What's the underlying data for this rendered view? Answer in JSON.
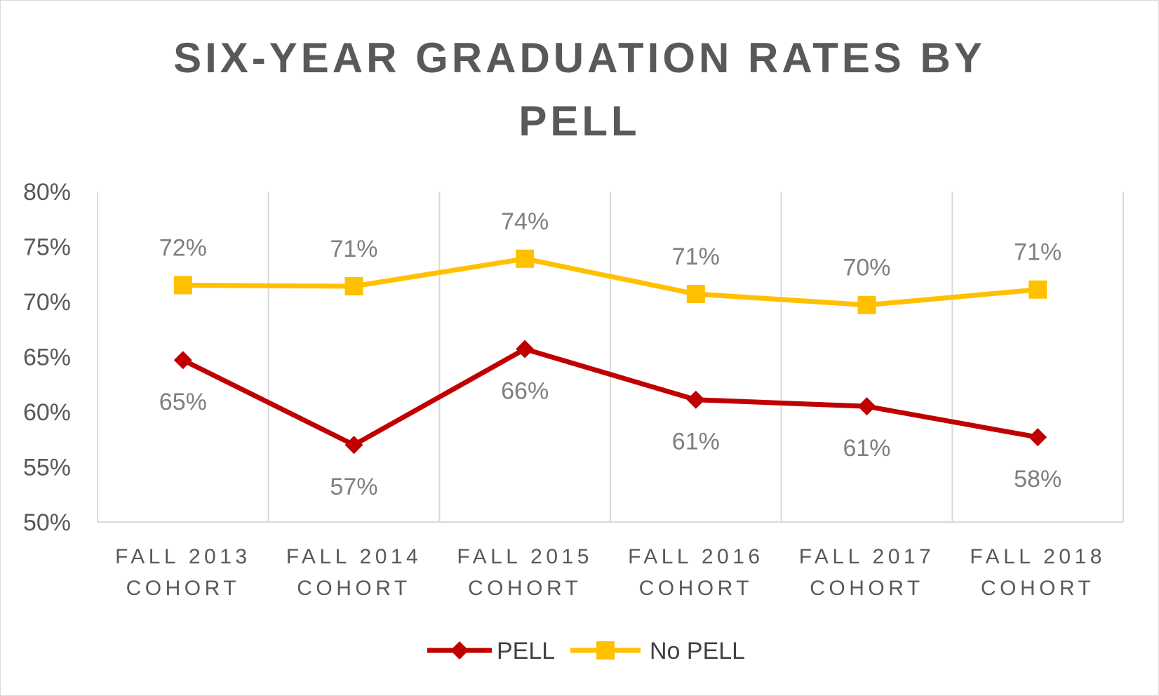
{
  "chart_data": {
    "type": "line",
    "title_lines": [
      "SIX-YEAR GRADUATION RATES BY",
      "PELL"
    ],
    "categories": [
      [
        "FALL 2013",
        "COHORT"
      ],
      [
        "FALL 2014",
        "COHORT"
      ],
      [
        "FALL 2015",
        "COHORT"
      ],
      [
        "FALL 2016",
        "COHORT"
      ],
      [
        "FALL 2017",
        "COHORT"
      ],
      [
        "FALL 2018",
        "COHORT"
      ]
    ],
    "yticks": [
      "50%",
      "55%",
      "60%",
      "65%",
      "70%",
      "75%",
      "80%"
    ],
    "ylim": [
      50,
      80
    ],
    "ytick_step": 5,
    "series": [
      {
        "name": "PELL",
        "color": "#c00000",
        "marker": "diamond",
        "label_position": "below",
        "values": [
          64.7,
          57.0,
          65.7,
          61.1,
          60.5,
          57.7
        ],
        "labels": [
          "65%",
          "57%",
          "66%",
          "61%",
          "61%",
          "58%"
        ]
      },
      {
        "name": "No PELL",
        "color": "#ffc000",
        "marker": "square",
        "label_position": "above",
        "values": [
          71.5,
          71.4,
          73.9,
          70.7,
          69.7,
          71.1
        ],
        "labels": [
          "72%",
          "71%",
          "74%",
          "71%",
          "70%",
          "71%"
        ]
      }
    ],
    "legend": {
      "position": "bottom",
      "entries": [
        "PELL",
        "No PELL"
      ]
    },
    "grid": {
      "vertical_category_dividers": true,
      "horizontal": false
    }
  }
}
